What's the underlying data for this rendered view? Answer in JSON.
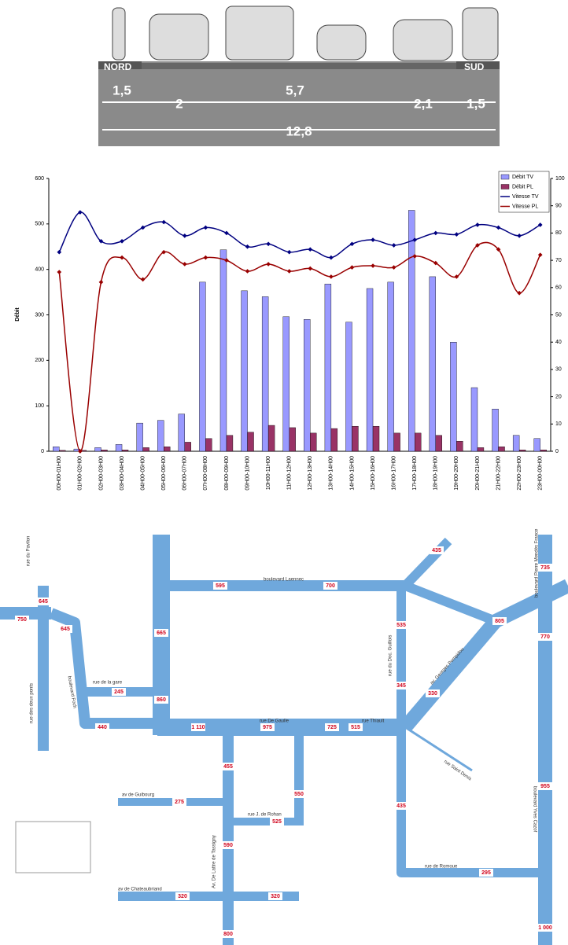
{
  "cross_section": {
    "north": "NORD",
    "south": "SUD",
    "widths": [
      "1,5",
      "2",
      "5,7",
      "2,1",
      "1,5"
    ],
    "total": "12,8"
  },
  "chart_data": {
    "type": "bar-line",
    "y_label": "Débit",
    "categories": [
      "00H00-01H00",
      "01H00-02H00",
      "02H00-03H00",
      "03H00-04H00",
      "04H00-05H00",
      "05H00-06H00",
      "06H00-07H00",
      "07H00-08H00",
      "08H00-09H00",
      "09H00-10H00",
      "10H00-11H00",
      "11H00-12H00",
      "12H00-13H00",
      "13H00-14H00",
      "14H00-15H00",
      "15H00-16H00",
      "16H00-17H00",
      "17H00-18H00",
      "18H00-19H00",
      "19H00-20H00",
      "20H00-21H00",
      "21H00-22H00",
      "22H00-23H00",
      "23H00-00H00"
    ],
    "series": [
      {
        "name": "Débit TV",
        "kind": "bar",
        "color": "#9999ff",
        "values": [
          10,
          5,
          8,
          15,
          62,
          68,
          82,
          372,
          443,
          353,
          340,
          296,
          290,
          368,
          284,
          358,
          372,
          530,
          384,
          240,
          140,
          93,
          35,
          28
        ]
      },
      {
        "name": "Débit PL",
        "kind": "bar",
        "color": "#993366",
        "values": [
          2,
          2,
          3,
          3,
          8,
          10,
          20,
          28,
          35,
          42,
          57,
          52,
          40,
          50,
          55,
          55,
          40,
          40,
          35,
          22,
          8,
          10,
          3,
          3
        ]
      },
      {
        "name": "Vitesse TV",
        "kind": "line",
        "axis": "y2",
        "color": "#000080",
        "values": [
          73,
          87.6,
          77,
          77,
          82,
          84,
          79,
          82,
          80,
          75,
          76,
          73,
          74,
          71,
          76,
          77.5,
          75.5,
          77.5,
          80,
          79.5,
          83,
          82,
          79,
          83
        ]
      },
      {
        "name": "Vitesse PL",
        "kind": "line",
        "axis": "y2",
        "color": "#990000",
        "values": [
          65.7,
          0,
          62,
          71,
          63,
          73,
          68.6,
          71,
          70,
          66,
          68.6,
          66,
          67,
          64,
          67.4,
          68,
          67.4,
          71.5,
          69,
          64,
          75.5,
          74,
          58,
          72
        ]
      }
    ],
    "ylim": [
      0,
      600
    ],
    "yticks": [
      0,
      100,
      200,
      300,
      400,
      500,
      600
    ],
    "y2lim": [
      0,
      100
    ],
    "y2ticks": [
      0,
      10,
      20,
      30,
      40,
      50,
      60,
      70,
      80,
      90,
      100
    ],
    "legend": "top-right"
  },
  "map": {
    "streets": [
      "rue du Pavilon",
      "rue des deux ponts",
      "rue de la gare",
      "boulevard Foch",
      "boulevard Laennec",
      "rue du Doc. Guillois",
      "av. Georges Pompidou",
      "boulevard Pierre Mendès France",
      "rue De Gaulle",
      "rue Thiault",
      "rue J. de Rohan",
      "av de Guibourg",
      "av de Chateaubriand",
      "Av. De Lattre de Tassigny",
      "rue de Romoue",
      "boulevard Yves Cazof",
      "rue Saint Denis"
    ],
    "counts": [
      "645",
      "750",
      "645",
      "245",
      "665",
      "860",
      "440",
      "1 110",
      "975",
      "725",
      "515",
      "595",
      "700",
      "435",
      "805",
      "735",
      "535",
      "345",
      "330",
      "455",
      "525",
      "550",
      "275",
      "590",
      "320",
      "320",
      "800",
      "435",
      "295",
      "770",
      "955",
      "1 000"
    ]
  }
}
